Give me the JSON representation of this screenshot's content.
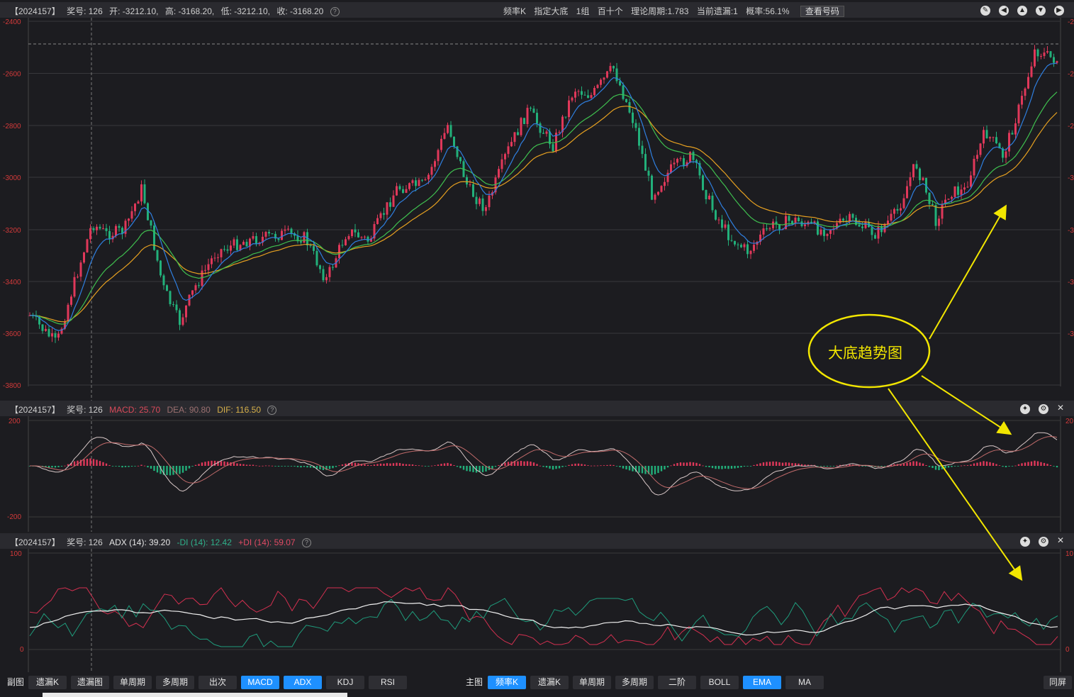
{
  "top_bar": {
    "lottery_id": "【2024157】",
    "issue": "奖号: 126",
    "open": "开: -3212.10,",
    "high": "高: -3168.20,",
    "low": "低: -3212.10,",
    "close": "收: -3168.20",
    "items": [
      "频率K",
      "指定大底",
      "1组",
      "百十个",
      "理论周期:1.783",
      "当前遗漏:1",
      "概率:56.1%"
    ],
    "view_button": "查看号码"
  },
  "main_chart": {
    "y_ticks": [
      "-2400",
      "-2600",
      "-2800",
      "-3000",
      "-3200",
      "-3400",
      "-3600",
      "-3800"
    ],
    "right_ticks": [
      "-2",
      "-2",
      "-2",
      "-3",
      "-3",
      "-3",
      "-3"
    ]
  },
  "macd_bar": {
    "lottery_id": "【2024157】",
    "issue": "奖号: 126",
    "macd": "MACD: 25.70",
    "dea": "DEA: 90.80",
    "dif": "DIF: 116.50",
    "y_ticks": [
      "200",
      "-200"
    ],
    "right_tick": "20"
  },
  "adx_bar": {
    "lottery_id": "【2024157】",
    "issue": "奖号: 126",
    "adx": "ADX (14): 39.20",
    "minus_di": "-DI (14): 12.42",
    "plus_di": "+DI (14): 59.07",
    "y_ticks": [
      "100",
      "0"
    ],
    "right_ticks": [
      "10",
      "0"
    ]
  },
  "annotation": {
    "label": "大底趋势图"
  },
  "footer": {
    "left_label": "副图",
    "left_tabs": [
      "遗漏K",
      "遗漏图",
      "单周期",
      "多周期",
      "出次",
      "MACD",
      "ADX",
      "KDJ",
      "RSI"
    ],
    "right_label": "主图",
    "right_tabs": [
      "频率K",
      "遗漏K",
      "单周期",
      "多周期",
      "二阶",
      "BOLL",
      "EMA",
      "MA"
    ],
    "far_right": "同屏",
    "active": [
      "MACD",
      "ADX",
      "频率K",
      "EMA"
    ]
  },
  "colors": {
    "up": "#e0385a",
    "down": "#22b07a",
    "ema_fast": "#2f7fe0",
    "ema_mid": "#3fbf4f",
    "ema_slow": "#e6a020",
    "annotation": "#f2e600"
  }
}
